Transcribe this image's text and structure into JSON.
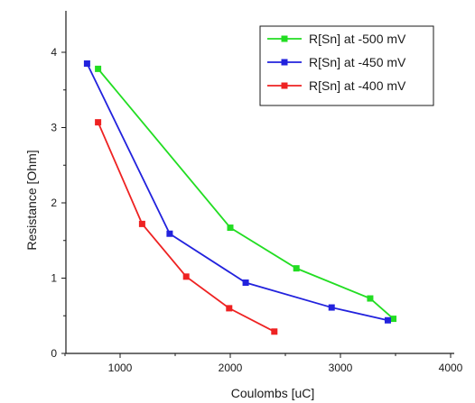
{
  "chart_data": {
    "type": "line",
    "xlabel": "Coulombs [uC]",
    "ylabel": "Resistance [Ohm]",
    "xlim": [
      500,
      4000
    ],
    "ylim": [
      0,
      4.4
    ],
    "xticks": [
      1000,
      2000,
      3000,
      4000
    ],
    "yticks": [
      0,
      1,
      2,
      3,
      4
    ],
    "xtick_labels": [
      "1000",
      "2000",
      "3000",
      "4000"
    ],
    "ytick_labels": [
      "0",
      "1",
      "2",
      "3",
      "4"
    ],
    "grid": false,
    "legend_position": "top-right",
    "series": [
      {
        "name": "R[Sn] at -500 mV",
        "color": "#22dd22",
        "x": [
          800,
          2000,
          2600,
          3270,
          3480
        ],
        "y": [
          3.78,
          1.67,
          1.13,
          0.73,
          0.46
        ]
      },
      {
        "name": "R[Sn] at -450 mV",
        "color": "#2222dd",
        "x": [
          700,
          1450,
          2140,
          2920,
          3430
        ],
        "y": [
          3.85,
          1.59,
          0.94,
          0.61,
          0.44
        ]
      },
      {
        "name": "R[Sn] at -400 mV",
        "color": "#ee2222",
        "x": [
          800,
          1200,
          1600,
          1990,
          2400
        ],
        "y": [
          3.07,
          1.72,
          1.02,
          0.6,
          0.29
        ]
      }
    ]
  }
}
